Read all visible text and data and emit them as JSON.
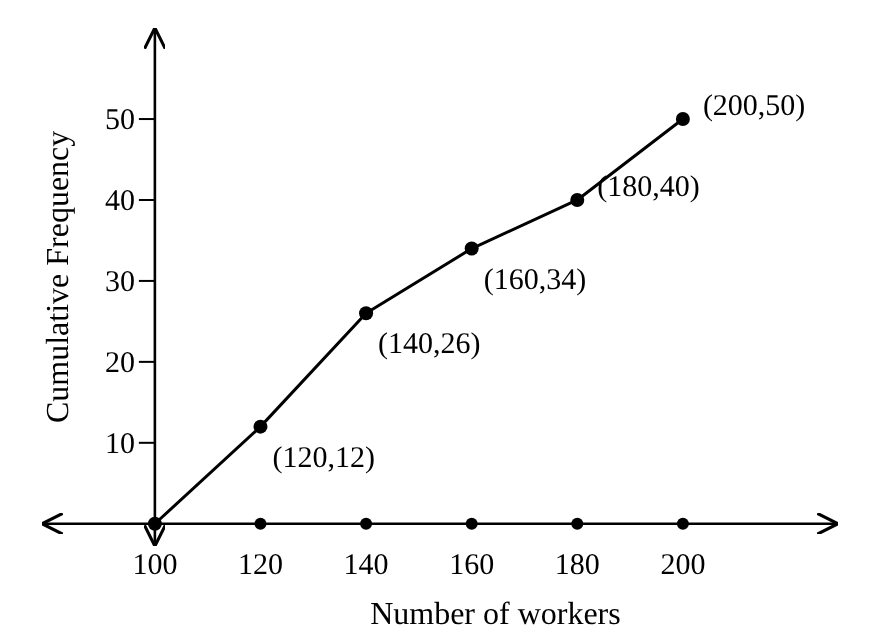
{
  "chart_data": {
    "type": "line",
    "xlabel": "Number of workers",
    "ylabel": "Cumulative Frequency",
    "x": [
      100,
      120,
      140,
      160,
      180,
      200
    ],
    "series": [
      {
        "color": "#000000",
        "values": [
          0,
          12,
          26,
          34,
          40,
          50
        ]
      },
      {
        "type": "scatter",
        "color": "#000000",
        "x": [
          120,
          140,
          160,
          180,
          200
        ],
        "values": [
          0,
          0,
          0,
          0,
          0
        ]
      }
    ],
    "marker": "circle",
    "line_style": "solid",
    "xlim": [
      79,
      229
    ],
    "ylim": [
      -2.5,
      61
    ],
    "xticks": [
      100,
      120,
      140,
      160,
      180,
      200
    ],
    "yticks": [
      10,
      20,
      30,
      40,
      50
    ],
    "grid": false,
    "annotations": [
      {
        "text": "(120,12)",
        "x": 120,
        "y": 12
      },
      {
        "text": "(140,26)",
        "x": 140,
        "y": 26
      },
      {
        "text": "(160,34)",
        "x": 160,
        "y": 34
      },
      {
        "text": "(180,40)",
        "x": 180,
        "y": 40
      },
      {
        "text": "(200,50)",
        "x": 200,
        "y": 50
      }
    ]
  }
}
